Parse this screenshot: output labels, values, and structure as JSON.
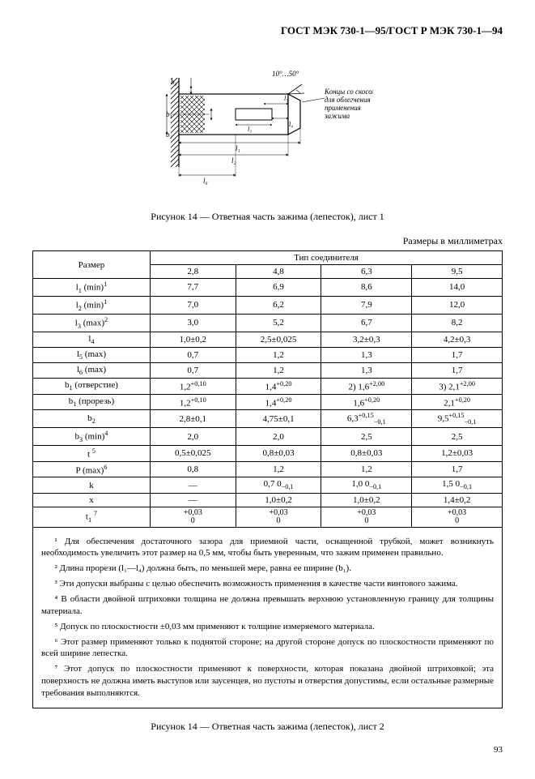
{
  "header": "ГОСТ МЭК 730-1—95/ГОСТ Р МЭК 730-1—94",
  "figure_caption_1": "Рисунок 14 — Ответная часть зажима (лепесток), лист 1",
  "units": "Размеры в миллиметрах",
  "figure_annotation": "Концы со скосом для облегчения применения зажима",
  "figure_angle": "10°…50°",
  "figure_labels": {
    "b3": "b₃",
    "b1": "b₁",
    "b2": "b₂",
    "l1": "l₁",
    "l2": "l₂",
    "l3": "l₃",
    "l4": "l₄",
    "l5": "l₅",
    "l6": "l₆",
    "t": "t"
  },
  "table": {
    "head_size": "Размер",
    "head_type": "Тип соединителя",
    "cols": [
      "2,8",
      "4,8",
      "6,3",
      "9,5"
    ],
    "rows": [
      {
        "label": "l₁ (min)¹",
        "v": [
          "7,7",
          "6,9",
          "8,6",
          "14,0"
        ]
      },
      {
        "label": "l₂ (min)¹",
        "v": [
          "7,0",
          "6,2",
          "7,9",
          "12,0"
        ]
      },
      {
        "label": "l₃ (max)²",
        "v": [
          "3,0",
          "5,2",
          "6,7",
          "8,2"
        ]
      },
      {
        "label": "l₄",
        "v": [
          "1,0±0,2",
          "2,5±0,025",
          "3,2±0,3",
          "4,2±0,3"
        ]
      },
      {
        "label": "l₅ (max)",
        "v": [
          "0,7",
          "1,2",
          "1,3",
          "1,7"
        ]
      },
      {
        "label": "l₆ (max)",
        "v": [
          "0,7",
          "1,2",
          "1,3",
          "1,7"
        ]
      },
      {
        "label": "b₁ (отверстие)",
        "v": [
          "1,2⁺⁰,¹₀",
          "1,4⁺⁰,²₀",
          "²⁾ 1,6⁺²,⁰₀",
          "³⁾ 2,1⁺²,⁰₀"
        ]
      },
      {
        "label": "b₁ (прорезь)",
        "v": [
          "1,2⁺⁰,¹₀",
          "1,4⁺⁰,²₀",
          "1,6⁺⁰,²₀",
          "2,1⁺⁰,²₀"
        ]
      },
      {
        "label": "b₂",
        "v": [
          "2,8±0,1",
          "4,75±0,1",
          "6,3⁺⁰,¹⁵₋₀,₁",
          "9,5⁺⁰,¹⁵₋₀,₁"
        ]
      },
      {
        "label": "b₃ (min)⁴",
        "v": [
          "2,0",
          "2,0",
          "2,5",
          "2,5"
        ]
      },
      {
        "label": "t ⁵",
        "v": [
          "0,5±0,025",
          "0,8±0,03",
          "0,8±0,03",
          "1,2±0,03"
        ]
      },
      {
        "label": "P (max)⁶",
        "v": [
          "0,8",
          "1,2",
          "1,2",
          "1,7"
        ]
      },
      {
        "label": "k",
        "v": [
          "—",
          "0,7 ⁰₋₀,₁",
          "1,0 ⁰₋₀,₁",
          "1,5 ⁰₋₀,₁"
        ]
      },
      {
        "label": "x",
        "v": [
          "—",
          "1,0±0,2",
          "1,0±0,2",
          "1,4±0,2"
        ]
      },
      {
        "label": "t₁ ⁷",
        "v": [
          "+0,03 / 0",
          "+0,03 / 0",
          "+0,03 / 0",
          "+0,03 / 0"
        ]
      }
    ]
  },
  "notes": [
    "¹ Для обеспечения достаточного зазора для приемной части, оснащенной трубкой, может возникнуть необходимость увеличить этот размер на 0,5 мм, чтобы быть уверенным, что зажим применен правильно.",
    "² Длина прорези (l₁—l₄) должна быть, по меньшей мере, равна ее ширине (b₁).",
    "³ Эти допуски выбраны с целью обеспечить возможность применения в качестве части винтового зажима.",
    "⁴ В области двойной штриховки толщина не должна превышать верхнюю установленную границу для толщины материала.",
    "⁵ Допуск по плоскостности ±0,03 мм применяют к толщине измеряемого материала.",
    "⁶ Этот размер применяют только к поднятой стороне; на другой стороне допуск по плоскостности применяют по всей ширине лепестка.",
    "⁷ Этот допуск по плоскостности применяют к поверхности, которая показана двойной штриховкой; эта поверхность не должна иметь выступов или заусенцев, но пустоты и отверстия допустимы, если остальные размерные требования выполняются."
  ],
  "figure_caption_2": "Рисунок 14 — Ответная часть зажима (лепесток), лист 2",
  "page_number": "93"
}
